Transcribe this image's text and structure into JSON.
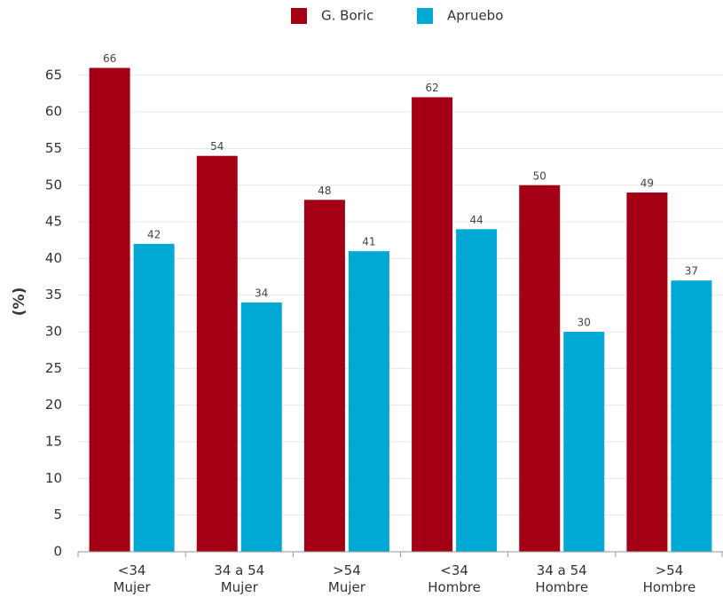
{
  "chart_data": {
    "type": "bar",
    "y_label": "(%)",
    "categories": [
      "<34\nMujer",
      "34 a 54\nMujer",
      ">54\nMujer",
      "<34\nHombre",
      "34 a 54\nHombre",
      ">54\nHombre"
    ],
    "series": [
      {
        "name": "G. Boric",
        "color": "#a30015",
        "values": [
          66,
          54,
          48,
          62,
          50,
          49
        ]
      },
      {
        "name": "Apruebo",
        "color": "#00a9d4",
        "values": [
          42,
          34,
          41,
          44,
          30,
          37
        ]
      }
    ],
    "ylim": [
      0,
      68
    ],
    "yticks": [
      0,
      5,
      10,
      15,
      20,
      25,
      30,
      35,
      40,
      45,
      50,
      55,
      60,
      65
    ],
    "grid": true,
    "legend": "top"
  }
}
